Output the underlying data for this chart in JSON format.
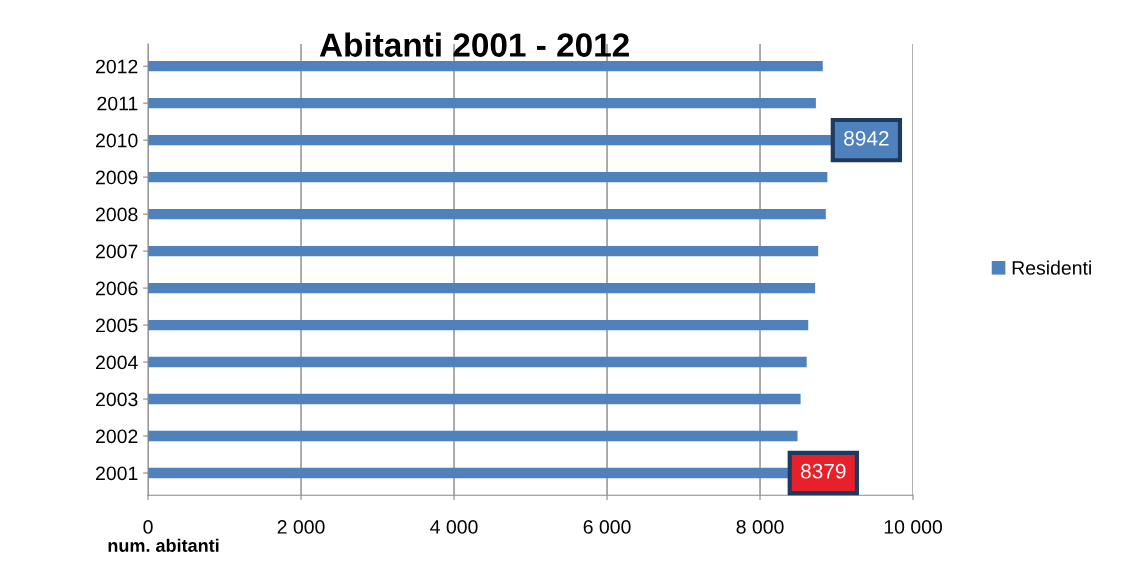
{
  "chart_data": {
    "type": "bar",
    "orientation": "horizontal",
    "title": "Abitanti 2001 - 2012",
    "xlabel": "num. abitanti",
    "categories": [
      "2012",
      "2011",
      "2010",
      "2009",
      "2008",
      "2007",
      "2006",
      "2005",
      "2004",
      "2003",
      "2002",
      "2001"
    ],
    "series": [
      {
        "name": "Residenti",
        "color": "#4f81bd",
        "values": [
          8820,
          8730,
          8942,
          8880,
          8860,
          8760,
          8720,
          8630,
          8610,
          8530,
          8490,
          8379
        ],
        "value_labels": [
          null,
          null,
          "8942",
          null,
          null,
          null,
          null,
          null,
          null,
          null,
          null,
          "8379"
        ]
      }
    ],
    "xlim": [
      0,
      10000
    ],
    "xticks": [
      0,
      {
        "value": 2000,
        "label": "2 000"
      },
      {
        "value": 4000,
        "label": "4 000"
      },
      {
        "value": 6000,
        "label": "6 000"
      },
      {
        "value": 8000,
        "label": "8 000"
      },
      {
        "value": 10000,
        "label": "10 000"
      }
    ],
    "grid": "x",
    "legend": "right"
  }
}
